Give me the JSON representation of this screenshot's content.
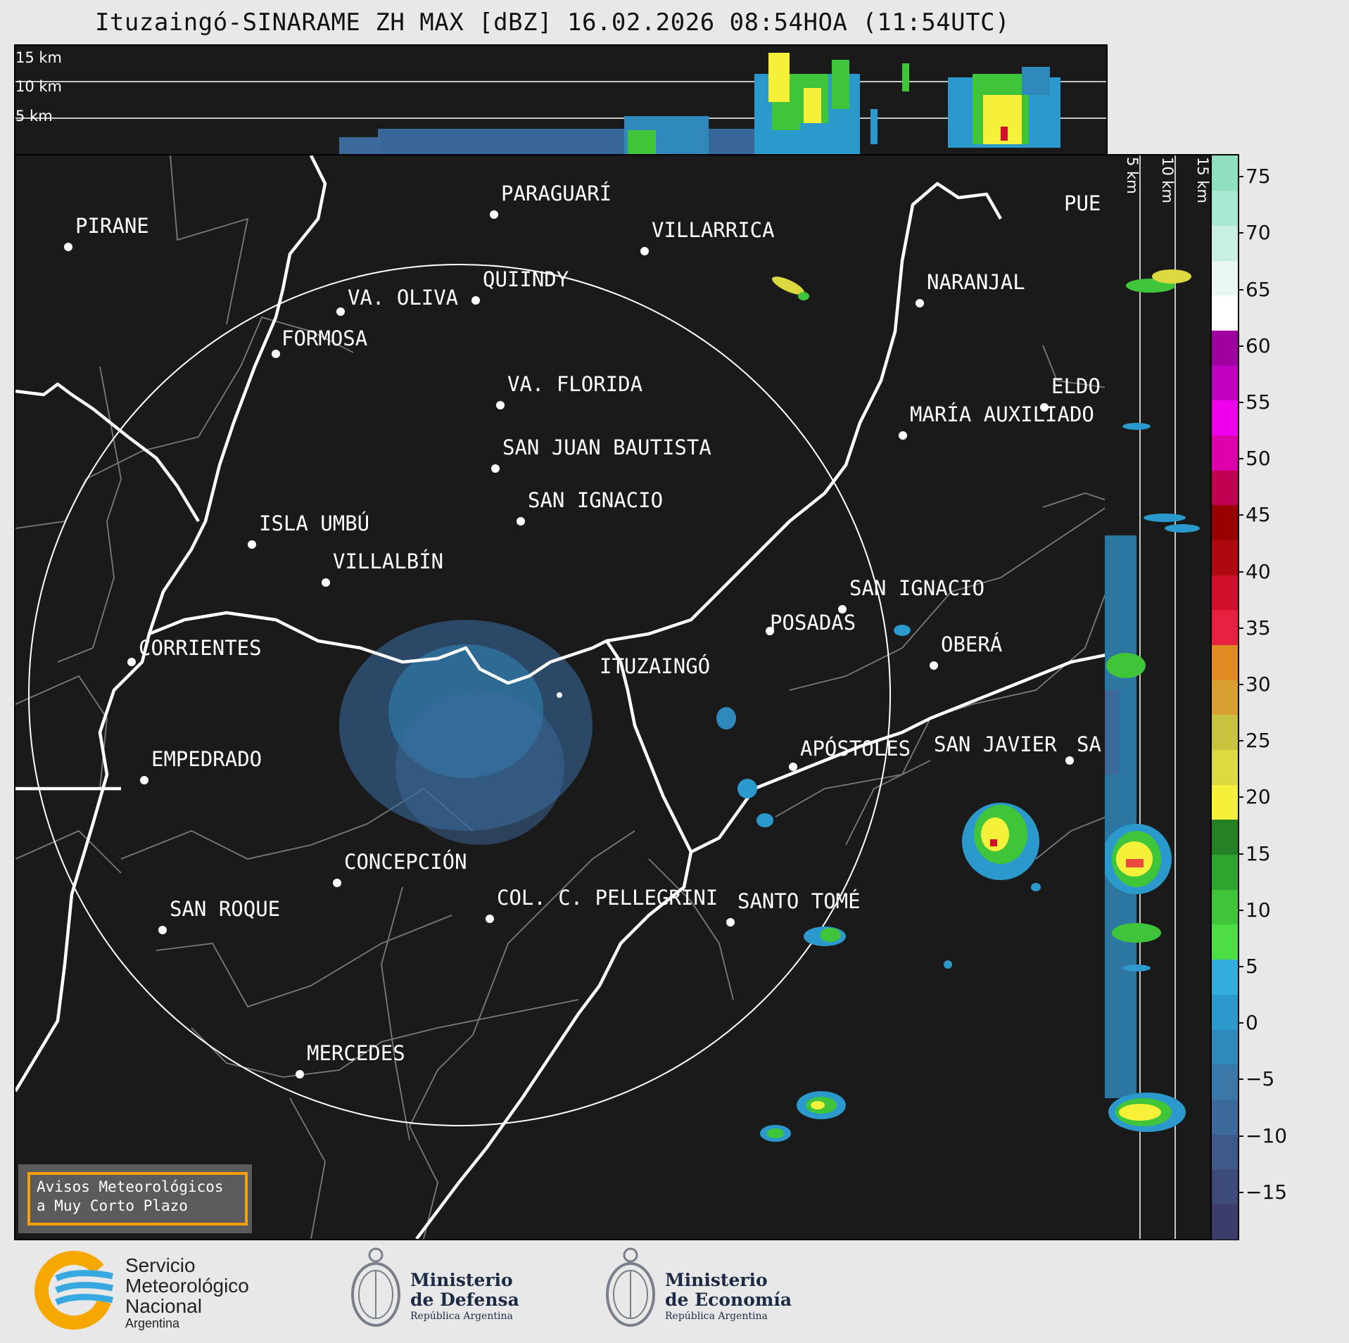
{
  "title": "Ituzaingó-SINARAME ZH MAX [dBZ] 16.02.2026 08:54HOA (11:54UTC)",
  "top_panel": {
    "altitude_labels": [
      "15 km",
      "10 km",
      "5 km"
    ]
  },
  "side_panel": {
    "altitude_labels": [
      "5 km",
      "10 km",
      "15 km"
    ]
  },
  "colorbar": {
    "unit": "dBZ",
    "ticks": [
      "75",
      "70",
      "65",
      "60",
      "55",
      "50",
      "45",
      "40",
      "35",
      "30",
      "25",
      "20",
      "15",
      "10",
      "5",
      "0",
      "−5",
      "−10",
      "−15"
    ],
    "range": [
      -19,
      77
    ],
    "colors": [
      "#3d3d6b",
      "#3e4a78",
      "#3f5a8a",
      "#3b6a9a",
      "#3a78aa",
      "#2f88bb",
      "#2b99cc",
      "#30aedc",
      "#4ddd44",
      "#3fc43a",
      "#2fa52e",
      "#257f25",
      "#f5f03a",
      "#dcd840",
      "#c8c23c",
      "#d8a030",
      "#e08a20",
      "#e82040",
      "#d0102a",
      "#b00810",
      "#980000",
      "#c00050",
      "#dd00aa",
      "#ee00ee",
      "#c000c0",
      "#a000a0",
      "#ffffff",
      "#e8f8f0",
      "#c8f0e0",
      "#a8e8d0",
      "#90e0c0"
    ]
  },
  "map": {
    "cities": [
      {
        "name": "PARAGUARÍ"
      },
      {
        "name": "VILLARRICA"
      },
      {
        "name": "PIRANE"
      },
      {
        "name": "QUIINDY"
      },
      {
        "name": "VA. OLIVA"
      },
      {
        "name": "NARANJAL"
      },
      {
        "name": "PUE"
      },
      {
        "name": "FORMOSA"
      },
      {
        "name": "VA. FLORIDA"
      },
      {
        "name": "ELDO"
      },
      {
        "name": "MARÍA AUXILIADO"
      },
      {
        "name": "SAN JUAN BAUTISTA"
      },
      {
        "name": "SAN IGNACIO"
      },
      {
        "name": "ISLA UMBÚ"
      },
      {
        "name": "VILLALBÍN"
      },
      {
        "name": "SAN IGNACIO"
      },
      {
        "name": "POSADAS"
      },
      {
        "name": "CORRIENTES"
      },
      {
        "name": "ITUZAINGÓ"
      },
      {
        "name": "OBERÁ"
      },
      {
        "name": "APÓSTOLES"
      },
      {
        "name": "SAN JAVIER"
      },
      {
        "name": "SA"
      },
      {
        "name": "EMPEDRADO"
      },
      {
        "name": "CONCEPCIÓN"
      },
      {
        "name": "COL. C. PELLEGRINI"
      },
      {
        "name": "SANTO TOMÉ"
      },
      {
        "name": "SAN ROQUE"
      },
      {
        "name": "MERCEDES"
      }
    ]
  },
  "notice": {
    "line1": "Avisos Meteorológicos",
    "line2": "a Muy Corto Plazo"
  },
  "logos": {
    "smn": {
      "line1": "Servicio",
      "line2": "Meteorológico",
      "line3": "Nacional",
      "line4": "Argentina"
    },
    "defensa": {
      "line1": "Ministerio",
      "line2": "de Defensa",
      "line3": "República Argentina"
    },
    "economia": {
      "line1": "Ministerio",
      "line2": "de Economía",
      "line3": "República Argentina"
    }
  },
  "palette": {
    "panel_bg": "#1a1a1a",
    "footer_bg": "#e8e8e8",
    "notice_border": "#f5a00a",
    "smn_orange": "#f7a800",
    "smn_blue": "#38a9e0"
  }
}
